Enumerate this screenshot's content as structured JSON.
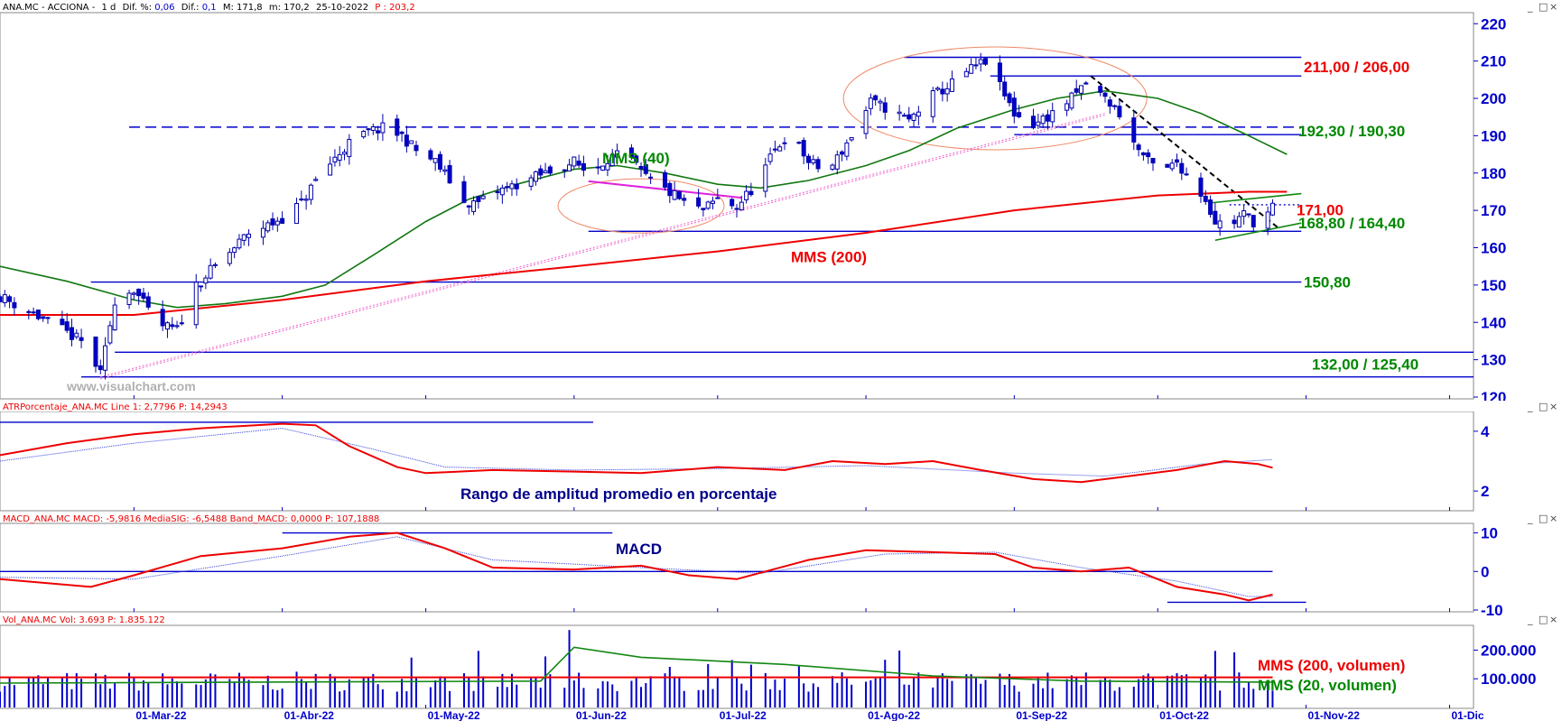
{
  "chart_data": [
    {
      "type": "candlestick",
      "header": {
        "symbol": "ANA.MC - ACCIONA -",
        "period": "1 d",
        "dif_pct_label": "Dif. %:",
        "dif_pct": "0,06",
        "dif_label": "Dif.:",
        "dif": "0,1",
        "max_label": "M:",
        "max": "171,8",
        "min_label": "m:",
        "min": "170,2",
        "date": "25-10-2022",
        "p_label": "P :",
        "p": "203,2"
      },
      "watermark": "www.visualchart.com",
      "ylim": [
        120,
        222
      ],
      "yticks": [
        120,
        130,
        140,
        150,
        160,
        170,
        180,
        190,
        200,
        210,
        220
      ],
      "xlim": [
        "2022-02-01",
        "2022-12-06"
      ],
      "xticks": [
        {
          "date": "2022-03-01",
          "label": "01-Mar-22"
        },
        {
          "date": "2022-04-01",
          "label": "01-Abr-22"
        },
        {
          "date": "2022-05-01",
          "label": "01-May-22"
        },
        {
          "date": "2022-06-01",
          "label": "01-Jun-22"
        },
        {
          "date": "2022-07-01",
          "label": "01-Jul-22"
        },
        {
          "date": "2022-08-01",
          "label": "01-Ago-22"
        },
        {
          "date": "2022-09-01",
          "label": "01-Sep-22"
        },
        {
          "date": "2022-10-01",
          "label": "01-Oct-22"
        },
        {
          "date": "2022-11-01",
          "label": "01-Nov-22"
        },
        {
          "date": "2022-12-01",
          "label": "01-Dic"
        }
      ],
      "close_path": [
        [
          "2022-02-01",
          147
        ],
        [
          "2022-02-07",
          143
        ],
        [
          "2022-02-14",
          138
        ],
        [
          "2022-02-19",
          134
        ],
        [
          "2022-02-22",
          126
        ],
        [
          "2022-02-25",
          146
        ],
        [
          "2022-03-01",
          149
        ],
        [
          "2022-03-04",
          143
        ],
        [
          "2022-03-07",
          139
        ],
        [
          "2022-03-10",
          138
        ],
        [
          "2022-03-14",
          150
        ],
        [
          "2022-03-18",
          155
        ],
        [
          "2022-03-22",
          160
        ],
        [
          "2022-03-25",
          164
        ],
        [
          "2022-03-29",
          166
        ],
        [
          "2022-04-01",
          168
        ],
        [
          "2022-04-05",
          172
        ],
        [
          "2022-04-08",
          178
        ],
        [
          "2022-04-12",
          184
        ],
        [
          "2022-04-15",
          188
        ],
        [
          "2022-04-19",
          191
        ],
        [
          "2022-04-22",
          192
        ],
        [
          "2022-04-26",
          190
        ],
        [
          "2022-04-29",
          186
        ],
        [
          "2022-05-03",
          183
        ],
        [
          "2022-05-06",
          178
        ],
        [
          "2022-05-09",
          172
        ],
        [
          "2022-05-12",
          172
        ],
        [
          "2022-05-16",
          175
        ],
        [
          "2022-05-20",
          177
        ],
        [
          "2022-05-24",
          179
        ],
        [
          "2022-05-28",
          181
        ],
        [
          "2022-06-01",
          183
        ],
        [
          "2022-06-04",
          180
        ],
        [
          "2022-06-08",
          184
        ],
        [
          "2022-06-12",
          185
        ],
        [
          "2022-06-15",
          180
        ],
        [
          "2022-06-18",
          177
        ],
        [
          "2022-06-22",
          174
        ],
        [
          "2022-06-25",
          171
        ],
        [
          "2022-06-28",
          170
        ],
        [
          "2022-07-01",
          173
        ],
        [
          "2022-07-05",
          171
        ],
        [
          "2022-07-09",
          177
        ],
        [
          "2022-07-13",
          186
        ],
        [
          "2022-07-16",
          191
        ],
        [
          "2022-07-20",
          183
        ],
        [
          "2022-07-24",
          180
        ],
        [
          "2022-07-27",
          186
        ],
        [
          "2022-07-30",
          192
        ],
        [
          "2022-08-02",
          199
        ],
        [
          "2022-08-06",
          197
        ],
        [
          "2022-08-10",
          194
        ],
        [
          "2022-08-14",
          200
        ],
        [
          "2022-08-18",
          203
        ],
        [
          "2022-08-22",
          207
        ],
        [
          "2022-08-26",
          210
        ],
        [
          "2022-08-29",
          203
        ],
        [
          "2022-09-01",
          196
        ],
        [
          "2022-09-05",
          193
        ],
        [
          "2022-09-09",
          196
        ],
        [
          "2022-09-13",
          200
        ],
        [
          "2022-09-16",
          204
        ],
        [
          "2022-09-20",
          200
        ],
        [
          "2022-09-23",
          196
        ],
        [
          "2022-09-26",
          188
        ],
        [
          "2022-09-29",
          183
        ],
        [
          "2022-10-02",
          180
        ],
        [
          "2022-10-05",
          183
        ],
        [
          "2022-10-08",
          178
        ],
        [
          "2022-10-11",
          173
        ],
        [
          "2022-10-13",
          167
        ],
        [
          "2022-10-16",
          166
        ],
        [
          "2022-10-19",
          169
        ],
        [
          "2022-10-22",
          166
        ],
        [
          "2022-10-25",
          171
        ]
      ],
      "ma40_path": [
        [
          "2022-02-01",
          155
        ],
        [
          "2022-02-15",
          151
        ],
        [
          "2022-03-01",
          146
        ],
        [
          "2022-03-10",
          144
        ],
        [
          "2022-03-20",
          145
        ],
        [
          "2022-04-01",
          147
        ],
        [
          "2022-04-10",
          150
        ],
        [
          "2022-04-20",
          158
        ],
        [
          "2022-05-01",
          167
        ],
        [
          "2022-05-10",
          173
        ],
        [
          "2022-05-20",
          177
        ],
        [
          "2022-06-01",
          181
        ],
        [
          "2022-06-10",
          182
        ],
        [
          "2022-06-20",
          180
        ],
        [
          "2022-07-01",
          177
        ],
        [
          "2022-07-10",
          176
        ],
        [
          "2022-07-20",
          178
        ],
        [
          "2022-08-01",
          182
        ],
        [
          "2022-08-10",
          186
        ],
        [
          "2022-08-20",
          192
        ],
        [
          "2022-09-01",
          197
        ],
        [
          "2022-09-10",
          200
        ],
        [
          "2022-09-20",
          202
        ],
        [
          "2022-10-01",
          200
        ],
        [
          "2022-10-10",
          196
        ],
        [
          "2022-10-20",
          190
        ],
        [
          "2022-10-28",
          185
        ]
      ],
      "ma200_path": [
        [
          "2022-02-01",
          142
        ],
        [
          "2022-03-01",
          142
        ],
        [
          "2022-04-01",
          146
        ],
        [
          "2022-05-01",
          151
        ],
        [
          "2022-06-01",
          155
        ],
        [
          "2022-07-01",
          159
        ],
        [
          "2022-08-01",
          164
        ],
        [
          "2022-09-01",
          170
        ],
        [
          "2022-10-01",
          174
        ],
        [
          "2022-10-20",
          175
        ],
        [
          "2022-10-28",
          175
        ]
      ],
      "support_resistance": [
        {
          "start": "2022-08-09",
          "end": "2022-10-31",
          "y": 211,
          "style": "solid"
        },
        {
          "start": "2022-08-27",
          "end": "2022-10-31",
          "y": 206,
          "style": "solid"
        },
        {
          "start": "2022-02-28",
          "end": "2022-10-31",
          "y": 192.3,
          "style": "dashed"
        },
        {
          "start": "2022-09-01",
          "end": "2022-10-31",
          "y": 190.3,
          "style": "solid"
        },
        {
          "start": "2022-06-04",
          "end": "2022-10-31",
          "y": 164.4,
          "style": "solid"
        },
        {
          "start": "2022-02-20",
          "end": "2022-10-31",
          "y": 150.8,
          "style": "solid"
        },
        {
          "start": "2022-02-25",
          "end": "2022-12-06",
          "y": 132,
          "style": "solid"
        },
        {
          "start": "2022-02-18",
          "end": "2022-12-06",
          "y": 125.4,
          "style": "solid"
        }
      ],
      "annotations": [
        {
          "text": "211,00 / 206,00",
          "color": "#ee0000"
        },
        {
          "text": "192,30 / 190,30",
          "color": "#008800"
        },
        {
          "text": "171,00",
          "color": "#ee0000"
        },
        {
          "text": "168,80 / 164,40",
          "color": "#008800"
        },
        {
          "text": "150,80",
          "color": "#008800"
        },
        {
          "text": "132,00 / 125,40",
          "color": "#008800"
        },
        {
          "text": "MMS (40)",
          "color": "#008800"
        },
        {
          "text": "MMS (200)",
          "color": "#ee0000"
        }
      ],
      "colors": {
        "up": "#0000cc",
        "ma40": "#117711",
        "ma200": "#ee0000",
        "levels": "#0000cc",
        "trend": "#000000"
      }
    },
    {
      "type": "line",
      "header": "ATRPorcentaje_ANA.MC Line 1: 2,7796 P: 14,2943",
      "title": "Rango de amplitud promedio en porcentaje",
      "ylim": [
        1.4,
        4.6
      ],
      "yticks": [
        2,
        4
      ],
      "series": [
        {
          "values_path": [
            [
              "2022-02-01",
              3.2
            ],
            [
              "2022-02-15",
              3.6
            ],
            [
              "2022-03-01",
              3.9
            ],
            [
              "2022-03-15",
              4.1
            ],
            [
              "2022-04-01",
              4.25
            ],
            [
              "2022-04-08",
              4.2
            ],
            [
              "2022-04-15",
              3.5
            ],
            [
              "2022-04-25",
              2.8
            ],
            [
              "2022-05-01",
              2.6
            ],
            [
              "2022-05-15",
              2.7
            ],
            [
              "2022-06-01",
              2.65
            ],
            [
              "2022-06-15",
              2.6
            ],
            [
              "2022-07-01",
              2.8
            ],
            [
              "2022-07-15",
              2.7
            ],
            [
              "2022-07-25",
              3.0
            ],
            [
              "2022-08-05",
              2.9
            ],
            [
              "2022-08-15",
              3.0
            ],
            [
              "2022-08-25",
              2.7
            ],
            [
              "2022-09-05",
              2.4
            ],
            [
              "2022-09-15",
              2.3
            ],
            [
              "2022-09-25",
              2.5
            ],
            [
              "2022-10-05",
              2.7
            ],
            [
              "2022-10-15",
              3.0
            ],
            [
              "2022-10-22",
              2.9
            ],
            [
              "2022-10-25",
              2.78
            ]
          ]
        },
        {
          "values_path": [
            [
              "2022-02-01",
              3.0
            ],
            [
              "2022-03-01",
              3.6
            ],
            [
              "2022-04-01",
              4.1
            ],
            [
              "2022-04-20",
              3.4
            ],
            [
              "2022-05-05",
              2.8
            ],
            [
              "2022-06-01",
              2.7
            ],
            [
              "2022-07-01",
              2.75
            ],
            [
              "2022-08-01",
              2.85
            ],
            [
              "2022-09-01",
              2.6
            ],
            [
              "2022-09-20",
              2.5
            ],
            [
              "2022-10-10",
              2.9
            ],
            [
              "2022-10-25",
              3.05
            ]
          ]
        }
      ],
      "level_line": {
        "start": "2022-02-01",
        "end": "2022-06-05",
        "y": 4.3
      }
    },
    {
      "type": "line",
      "header": "MACD_ANA.MC MACD: -5,9816 MediaSIG: -6,5488 Band_MACD: 0,0000 P: 107,1888",
      "title": "MACD",
      "ylim": [
        -10,
        12
      ],
      "yticks": [
        -10,
        0,
        10
      ],
      "series": [
        {
          "values_path": [
            [
              "2022-02-01",
              -2
            ],
            [
              "2022-02-20",
              -4
            ],
            [
              "2022-03-01",
              -1
            ],
            [
              "2022-03-15",
              4
            ],
            [
              "2022-04-01",
              6
            ],
            [
              "2022-04-15",
              9
            ],
            [
              "2022-04-25",
              10
            ],
            [
              "2022-05-05",
              6
            ],
            [
              "2022-05-15",
              1
            ],
            [
              "2022-06-01",
              0.5
            ],
            [
              "2022-06-15",
              1.5
            ],
            [
              "2022-06-25",
              -1
            ],
            [
              "2022-07-05",
              -2
            ],
            [
              "2022-07-20",
              3
            ],
            [
              "2022-08-01",
              5.5
            ],
            [
              "2022-08-15",
              5
            ],
            [
              "2022-08-28",
              4.5
            ],
            [
              "2022-09-05",
              1
            ],
            [
              "2022-09-15",
              0
            ],
            [
              "2022-09-25",
              1
            ],
            [
              "2022-10-05",
              -4
            ],
            [
              "2022-10-15",
              -6
            ],
            [
              "2022-10-20",
              -7.5
            ],
            [
              "2022-10-25",
              -6
            ]
          ]
        },
        {
          "values_path": [
            [
              "2022-02-01",
              -1.5
            ],
            [
              "2022-03-01",
              -2
            ],
            [
              "2022-04-01",
              4
            ],
            [
              "2022-04-25",
              9
            ],
            [
              "2022-05-15",
              3
            ],
            [
              "2022-06-15",
              1
            ],
            [
              "2022-07-10",
              -0.5
            ],
            [
              "2022-08-05",
              4.5
            ],
            [
              "2022-08-28",
              5
            ],
            [
              "2022-09-15",
              1
            ],
            [
              "2022-10-05",
              -2.5
            ],
            [
              "2022-10-20",
              -6.5
            ],
            [
              "2022-10-25",
              -6.5
            ]
          ]
        }
      ],
      "level_lines": [
        {
          "start": "2022-04-01",
          "end": "2022-06-09",
          "y": 10
        },
        {
          "start": "2022-02-01",
          "end": "2022-10-25",
          "y": 0
        },
        {
          "start": "2022-10-03",
          "end": "2022-11-01",
          "y": -8
        }
      ]
    },
    {
      "type": "bar",
      "header": "Vol_ANA.MC Vol: 3.693 P: 1.835.122",
      "ylim": [
        0,
        280000
      ],
      "yticks": [
        {
          "value": 100000,
          "label": "100.000"
        },
        {
          "value": 200000,
          "label": "200.000"
        }
      ],
      "series_bars_seed": 7,
      "ma200_vol": [
        [
          "2022-02-01",
          105000
        ],
        [
          "2022-10-25",
          105000
        ]
      ],
      "ma20_vol_path": [
        [
          "2022-02-01",
          85000
        ],
        [
          "2022-05-25",
          92000
        ],
        [
          "2022-06-01",
          210000
        ],
        [
          "2022-06-15",
          175000
        ],
        [
          "2022-07-15",
          150000
        ],
        [
          "2022-08-15",
          110000
        ],
        [
          "2022-09-15",
          92000
        ],
        [
          "2022-10-25",
          88000
        ]
      ],
      "annotations": [
        {
          "text": "MMS (200, volumen)",
          "color": "#ee0000"
        },
        {
          "text": "MMS (20, volumen)",
          "color": "#008800"
        }
      ]
    }
  ]
}
